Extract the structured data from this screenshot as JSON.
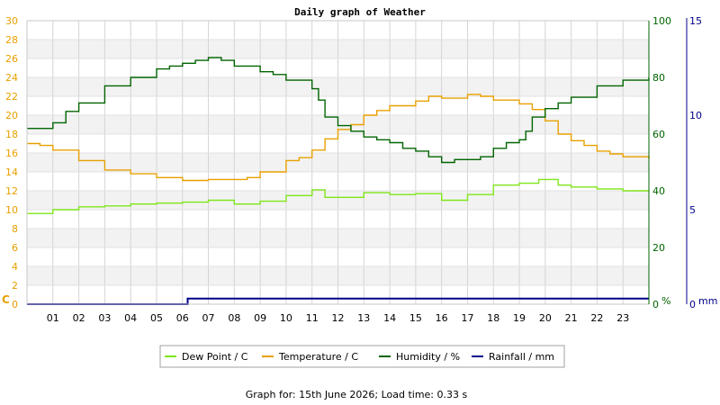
{
  "chart_data": {
    "type": "line",
    "title": "Daily graph of Weather",
    "footer": "Graph for: 15th June 2026; Load time: 0.33 s",
    "x_ticks": [
      "01",
      "02",
      "03",
      "04",
      "05",
      "06",
      "07",
      "08",
      "09",
      "10",
      "11",
      "12",
      "13",
      "14",
      "15",
      "16",
      "17",
      "18",
      "19",
      "20",
      "21",
      "22",
      "23"
    ],
    "xlim": [
      0,
      24
    ],
    "axes": {
      "left": {
        "unit": "C",
        "range": [
          0,
          30
        ],
        "ticks": [
          0,
          2,
          4,
          6,
          8,
          10,
          12,
          14,
          16,
          18,
          20,
          22,
          24,
          26,
          28,
          30
        ],
        "color": "#e8a000"
      },
      "right1": {
        "unit": "%",
        "range": [
          0,
          100
        ],
        "ticks": [
          0,
          20,
          40,
          60,
          80,
          100
        ],
        "color": "#006400"
      },
      "right2": {
        "unit": "mm",
        "range": [
          0,
          15
        ],
        "ticks": [
          0,
          5,
          10,
          15
        ],
        "color": "#00008b"
      }
    },
    "series": [
      {
        "name": "Dew Point / C",
        "axis": "left",
        "color": "#7fe619",
        "x": [
          0,
          1,
          2,
          3,
          4,
          5,
          6,
          7,
          8,
          9,
          10,
          11,
          11.5,
          12,
          13,
          14,
          15,
          16,
          17,
          18,
          19,
          19.75,
          20.5,
          21,
          22,
          23,
          24
        ],
        "y": [
          9.6,
          10.0,
          10.3,
          10.4,
          10.6,
          10.7,
          10.8,
          11.0,
          10.6,
          10.9,
          11.5,
          12.1,
          11.3,
          11.3,
          11.8,
          11.6,
          11.7,
          11.0,
          11.6,
          12.6,
          12.8,
          13.2,
          12.6,
          12.4,
          12.2,
          12.0,
          12.0
        ]
      },
      {
        "name": "Temperature / C",
        "axis": "left",
        "color": "#e8a000",
        "x": [
          0,
          0.5,
          1,
          2,
          3,
          4,
          5,
          6,
          7,
          8,
          8.5,
          9,
          10,
          10.5,
          11,
          11.5,
          12,
          12.5,
          13,
          13.5,
          14,
          14.5,
          15,
          15.5,
          16,
          16.5,
          17,
          17.5,
          18,
          18.5,
          19,
          19.5,
          20,
          20.5,
          21,
          21.5,
          22,
          22.5,
          23,
          24
        ],
        "y": [
          17.0,
          16.8,
          16.3,
          15.2,
          14.2,
          13.8,
          13.4,
          13.1,
          13.2,
          13.2,
          13.4,
          14.0,
          15.2,
          15.5,
          16.3,
          17.5,
          18.5,
          19.0,
          20.0,
          20.5,
          21.0,
          21.0,
          21.5,
          22.0,
          21.8,
          21.8,
          22.2,
          22.0,
          21.6,
          21.6,
          21.2,
          20.6,
          19.4,
          18.0,
          17.3,
          16.8,
          16.2,
          15.9,
          15.6,
          15.4
        ]
      },
      {
        "name": "Humidity / %",
        "axis": "right1",
        "color": "#006400",
        "x": [
          0,
          1,
          1.5,
          2,
          3,
          4,
          5,
          5.5,
          6,
          6.5,
          7,
          7.5,
          8,
          8.5,
          9,
          9.5,
          10,
          11,
          11.25,
          11.5,
          12,
          12.5,
          13,
          13.5,
          14,
          14.5,
          15,
          15.5,
          16,
          16.5,
          17,
          17.5,
          18,
          18.5,
          19,
          19.25,
          19.5,
          20,
          20.5,
          21,
          22,
          23,
          24
        ],
        "y": [
          62,
          64,
          68,
          71,
          77,
          80,
          83,
          84,
          85,
          86,
          87,
          86,
          84,
          84,
          82,
          81,
          79,
          76,
          72,
          66,
          63,
          61,
          59,
          58,
          57,
          55,
          54,
          52,
          50,
          51,
          51,
          52,
          55,
          57,
          58,
          61,
          66,
          69,
          71,
          73,
          77,
          79,
          80
        ]
      },
      {
        "name": "Rainfall / mm",
        "axis": "right2",
        "color": "#00008b",
        "x": [
          0,
          6.2,
          6.2,
          24
        ],
        "y": [
          0,
          0,
          0.3,
          0.3
        ]
      }
    ],
    "legend_position": "bottom",
    "grid": true
  }
}
